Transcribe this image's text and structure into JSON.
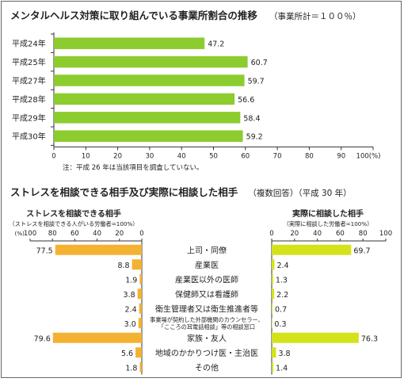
{
  "chart_data": [
    {
      "type": "bar",
      "orientation": "horizontal",
      "title": "メンタルヘルス対策に取り組んでいる事業所割合の推移",
      "subtitle": "（事業所計＝１００％）",
      "categories": [
        "平成24年",
        "平成25年",
        "平成27年",
        "平成28年",
        "平成29年",
        "平成30年"
      ],
      "values": [
        47.2,
        60.7,
        59.7,
        56.6,
        58.4,
        59.2
      ],
      "value_labels": [
        "47.2",
        "60.7",
        "59.7",
        "56.6",
        "58.4",
        "59.2"
      ],
      "xlim": [
        0,
        100
      ],
      "x_ticks": [
        "0",
        "10",
        "20",
        "30",
        "40",
        "50",
        "60",
        "70",
        "80",
        "90",
        "100"
      ],
      "x_unit": "(%)",
      "note": "注：平成 26 年は当該項目を調査していない。",
      "color": "#8ccc2e",
      "grid": false
    },
    {
      "type": "bar",
      "orientation": "horizontal-butterfly",
      "title": "ストレスを相談できる相手及び実際に相談した相手",
      "subtitle": "（複数回答）（平成 30 年）",
      "categories": [
        "上司・同僚",
        "産業医",
        "産業医以外の医師",
        "保健師又は看護師",
        "衛生管理者又は衛生推進者等",
        [
          "事業場が契約した外部機関のカウンセラー、",
          "「こころの耳電話相談」等の相談窓口"
        ],
        "家族・友人",
        "地域のかかりつけ医・主治医",
        "その他"
      ],
      "left": {
        "title": "ストレスを相談できる相手",
        "subtitle": "（ストレスを相談できる人がいる労働者=100%）",
        "unit": "(%)",
        "values": [
          77.5,
          8.8,
          1.9,
          3.8,
          2.4,
          3.0,
          79.6,
          5.6,
          1.8
        ],
        "value_labels": [
          "77.5",
          "8.8",
          "1.9",
          "3.8",
          "2.4",
          "3.0",
          "79.6",
          "5.6",
          "1.8"
        ],
        "xlim": [
          0,
          100
        ],
        "x_ticks": [
          "100",
          "80",
          "60",
          "40",
          "20",
          "0"
        ],
        "color": "#f4b233"
      },
      "right": {
        "title": "実際に相談した相手",
        "subtitle": "（実際に相談した労働者=100%）",
        "values": [
          69.7,
          2.4,
          1.3,
          2.2,
          0.7,
          0.3,
          76.3,
          3.8,
          1.4
        ],
        "value_labels": [
          "69.7",
          "2.4",
          "1.3",
          "2.2",
          "0.7",
          "0.3",
          "76.3",
          "3.8",
          "1.4"
        ],
        "xlim": [
          0,
          100
        ],
        "x_ticks": [
          "0",
          "20",
          "40",
          "60",
          "80",
          "100"
        ],
        "color": "#d4e21b"
      }
    }
  ]
}
